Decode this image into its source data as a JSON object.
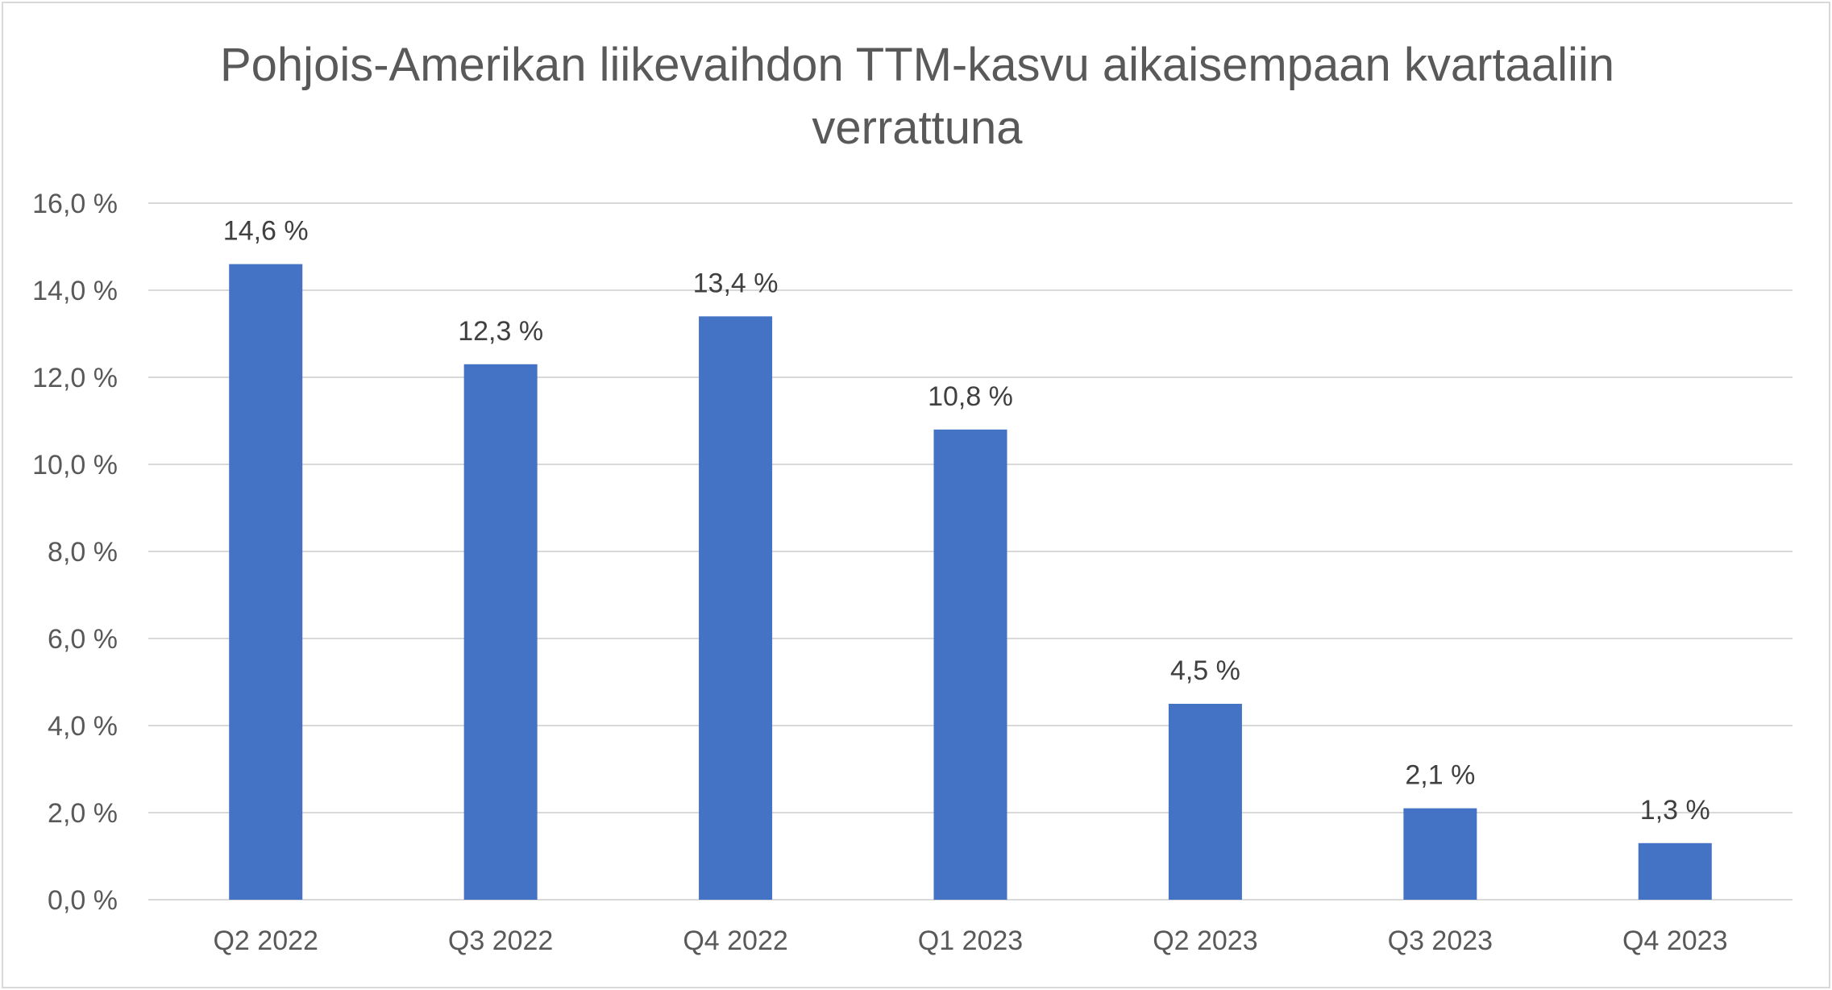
{
  "chart_data": {
    "type": "bar",
    "title_lines": [
      "Pohjois-Amerikan liikevaihdon TTM-kasvu aikaisempaan kvartaaliin",
      "verrattuna"
    ],
    "categories": [
      "Q2 2022",
      "Q3 2022",
      "Q4 2022",
      "Q1 2023",
      "Q2 2023",
      "Q3 2023",
      "Q4 2023"
    ],
    "values": [
      14.6,
      12.3,
      13.4,
      10.8,
      4.5,
      2.1,
      1.3
    ],
    "data_labels": [
      "14,6 %",
      "12,3 %",
      "13,4 %",
      "10,8 %",
      "4,5 %",
      "2,1 %",
      "1,3 %"
    ],
    "y_ticks": [
      0,
      2,
      4,
      6,
      8,
      10,
      12,
      14,
      16
    ],
    "y_tick_labels": [
      "0,0 %",
      "2,0 %",
      "4,0 %",
      "6,0 %",
      "8,0 %",
      "10,0 %",
      "12,0 %",
      "14,0 %",
      "16,0 %"
    ],
    "ylim": [
      0,
      16
    ],
    "xlabel": "",
    "ylabel": "",
    "grid": true,
    "legend": "none",
    "bar_color": "#4472C4"
  }
}
